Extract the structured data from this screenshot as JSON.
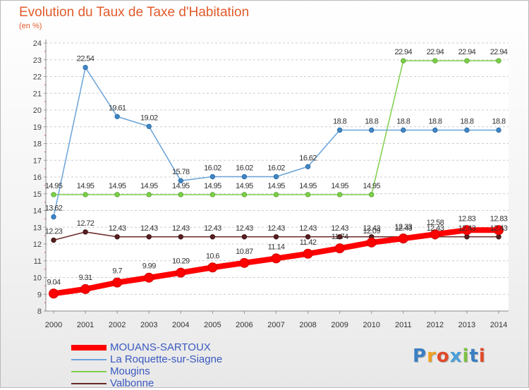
{
  "title": "Evolution du Taux de Taxe d'Habitation",
  "subtitle": "(en %)",
  "logo_text": "Proxiti",
  "chart_data": {
    "type": "line",
    "title": "Evolution du Taux de Taxe d'Habitation",
    "ylabel": "(en %)",
    "xlabel": "",
    "x": [
      "2000",
      "2001",
      "2002",
      "2003",
      "2004",
      "2005",
      "2006",
      "2007",
      "2008",
      "2009",
      "2010",
      "2011",
      "2012",
      "2013",
      "2014"
    ],
    "y_ticks": [
      "8",
      "9",
      "10",
      "11",
      "12",
      "13",
      "14",
      "15",
      "16",
      "17",
      "18",
      "19",
      "20",
      "21",
      "22",
      "23",
      "24"
    ],
    "ylim": [
      8,
      24
    ],
    "grid": "horizontal dashed",
    "legend_position": "bottom-left",
    "series": [
      {
        "name": "MOUANS-SARTOUX",
        "color": "#ff0000",
        "values": [
          9.04,
          9.31,
          9.7,
          9.99,
          10.29,
          10.6,
          10.87,
          11.14,
          11.42,
          11.74,
          12.09,
          12.33,
          12.58,
          12.83,
          12.83
        ],
        "labels": [
          "9.04",
          "9.31",
          "9.7",
          "9.99",
          "10.29",
          "10.6",
          "10.87",
          "11.14",
          "11.42",
          "11.74",
          "12.09",
          "12.33",
          "12.58",
          "12.83",
          "12.83"
        ]
      },
      {
        "name": "La Roquette-sur-Siagne",
        "color": "#6aa3d8",
        "values": [
          13.62,
          22.54,
          19.61,
          19.02,
          15.78,
          16.02,
          16.02,
          16.02,
          16.62,
          18.8,
          18.8,
          18.8,
          18.8,
          18.8,
          18.8
        ],
        "labels": [
          "13.62",
          "22.54",
          "19.61",
          "19.02",
          "15.78",
          "16.02",
          "16.02",
          "16.02",
          "16.62",
          "18.8",
          "18.8",
          "18.8",
          "18.8",
          "18.8",
          "18.8"
        ]
      },
      {
        "name": "Mougins",
        "color": "#7ed04b",
        "values": [
          14.95,
          14.95,
          14.95,
          14.95,
          14.95,
          14.95,
          14.95,
          14.95,
          14.95,
          14.95,
          14.95,
          22.94,
          22.94,
          22.94,
          22.94
        ],
        "labels": [
          "14.95",
          "14.95",
          "14.95",
          "14.95",
          "14.95",
          "14.95",
          "14.95",
          "14.95",
          "14.95",
          "14.95",
          "14.95",
          "22.94",
          "22.94",
          "22.94",
          "22.94"
        ]
      },
      {
        "name": "Valbonne",
        "color": "#6b2a2a",
        "values": [
          12.23,
          12.72,
          12.43,
          12.43,
          12.43,
          12.43,
          12.43,
          12.43,
          12.43,
          12.43,
          12.43,
          12.43,
          12.43,
          12.43,
          12.43
        ],
        "labels": [
          "12.23",
          "12.72",
          "12.43",
          "12.43",
          "12.43",
          "12.43",
          "12.43",
          "12.43",
          "12.43",
          "12.43",
          "12.43",
          "12.43",
          "12.43",
          "12.43",
          "12.43"
        ]
      }
    ]
  }
}
